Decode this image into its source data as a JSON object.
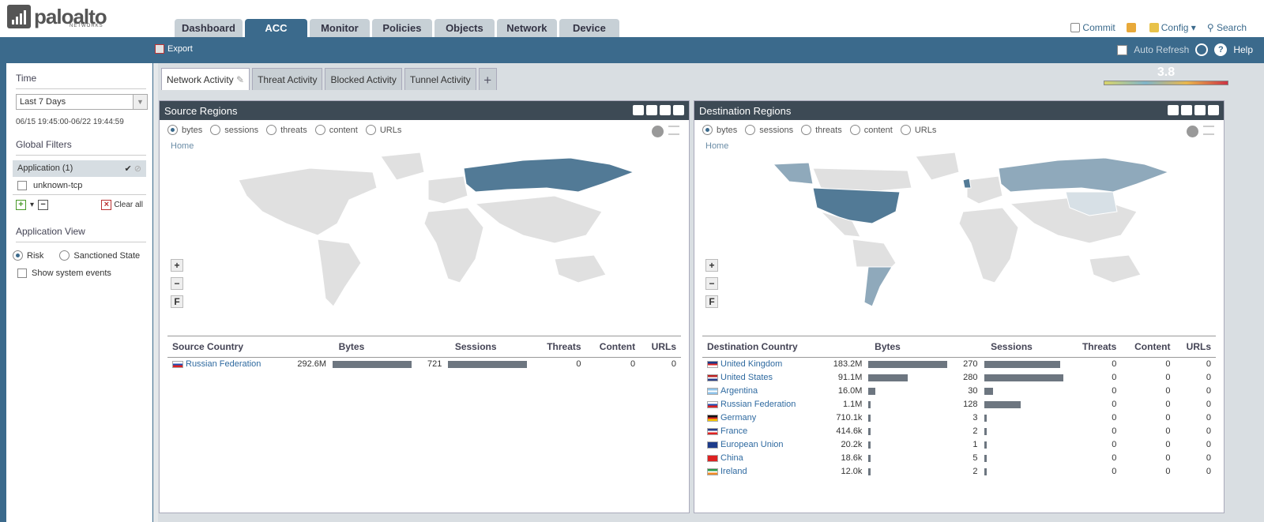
{
  "header": {
    "brand": "paloalto",
    "brand_sub": "NETWORKS",
    "tabs": [
      "Dashboard",
      "ACC",
      "Monitor",
      "Policies",
      "Objects",
      "Network",
      "Device"
    ],
    "active_tab": "ACC",
    "commit": "Commit",
    "config": "Config",
    "search": "Search"
  },
  "toolbar": {
    "export": "Export",
    "auto_refresh": "Auto Refresh",
    "help": "Help"
  },
  "sidebar": {
    "time_title": "Time",
    "time_value": "Last 7 Days",
    "date_range": "06/15 19:45:00-06/22 19:44:59",
    "global_filters_title": "Global Filters",
    "filter_group": "Application (1)",
    "filter_item": "unknown-tcp",
    "clear_all": "Clear all",
    "app_view_title": "Application View",
    "risk": "Risk",
    "sanctioned": "Sanctioned State",
    "show_system_events": "Show system events"
  },
  "widget_tabs": [
    "Network Activity",
    "Threat Activity",
    "Blocked Activity",
    "Tunnel Activity"
  ],
  "risk_level": "3.8",
  "radio_options": [
    "bytes",
    "sessions",
    "threats",
    "content",
    "URLs"
  ],
  "source_panel": {
    "title": "Source Regions",
    "home": "Home",
    "columns": [
      "Source Country",
      "Bytes",
      "Sessions",
      "Threats",
      "Content",
      "URLs"
    ],
    "rows": [
      {
        "country": "Russian Federation",
        "bytes": "292.6M",
        "bytes_frac": 1.0,
        "sessions": "721",
        "sessions_frac": 1.0,
        "threats": "0",
        "content": "0",
        "urls": "0",
        "flag": [
          "#ffffff",
          "#1f4fb5",
          "#d22"
        ]
      }
    ]
  },
  "dest_panel": {
    "title": "Destination Regions",
    "home": "Home",
    "columns": [
      "Destination Country",
      "Bytes",
      "Sessions",
      "Threats",
      "Content",
      "URLs"
    ],
    "rows": [
      {
        "country": "United Kingdom",
        "bytes": "183.2M",
        "bytes_frac": 1.0,
        "sessions": "270",
        "sessions_frac": 0.96,
        "threats": "0",
        "content": "0",
        "urls": "0",
        "flag": [
          "#1d3b8a",
          "#d22",
          "#ffffff"
        ]
      },
      {
        "country": "United States",
        "bytes": "91.1M",
        "bytes_frac": 0.5,
        "sessions": "280",
        "sessions_frac": 1.0,
        "threats": "0",
        "content": "0",
        "urls": "0",
        "flag": [
          "#b22",
          "#ffffff",
          "#2a3f88"
        ]
      },
      {
        "country": "Argentina",
        "bytes": "16.0M",
        "bytes_frac": 0.09,
        "sessions": "30",
        "sessions_frac": 0.11,
        "threats": "0",
        "content": "0",
        "urls": "0",
        "flag": [
          "#8fc3ea",
          "#ffffff",
          "#8fc3ea"
        ]
      },
      {
        "country": "Russian Federation",
        "bytes": "1.1M",
        "bytes_frac": 0.02,
        "sessions": "128",
        "sessions_frac": 0.46,
        "threats": "0",
        "content": "0",
        "urls": "0",
        "flag": [
          "#ffffff",
          "#1f4fb5",
          "#d22"
        ]
      },
      {
        "country": "Germany",
        "bytes": "710.1k",
        "bytes_frac": 0.02,
        "sessions": "3",
        "sessions_frac": 0.02,
        "threats": "0",
        "content": "0",
        "urls": "0",
        "flag": [
          "#111",
          "#d22",
          "#f5c400"
        ]
      },
      {
        "country": "France",
        "bytes": "414.6k",
        "bytes_frac": 0.02,
        "sessions": "2",
        "sessions_frac": 0.02,
        "threats": "0",
        "content": "0",
        "urls": "0",
        "flag": [
          "#2a3f88",
          "#ffffff",
          "#d22"
        ]
      },
      {
        "country": "European Union",
        "bytes": "20.2k",
        "bytes_frac": 0.02,
        "sessions": "1",
        "sessions_frac": 0.02,
        "threats": "0",
        "content": "0",
        "urls": "0",
        "flag": [
          "#1d3b8a",
          "#1d3b8a",
          "#1d3b8a"
        ]
      },
      {
        "country": "China",
        "bytes": "18.6k",
        "bytes_frac": 0.02,
        "sessions": "5",
        "sessions_frac": 0.02,
        "threats": "0",
        "content": "0",
        "urls": "0",
        "flag": [
          "#d22",
          "#d22",
          "#d22"
        ]
      },
      {
        "country": "Ireland",
        "bytes": "12.0k",
        "bytes_frac": 0.02,
        "sessions": "2",
        "sessions_frac": 0.02,
        "threats": "0",
        "content": "0",
        "urls": "0",
        "flag": [
          "#2a9a4a",
          "#ffffff",
          "#f08a24"
        ]
      }
    ]
  },
  "colors": {
    "accent": "#3b6a8c",
    "link": "#2f6aa0",
    "map_land": "#e0e0e0",
    "map_high": "#527a96",
    "map_mid": "#8fa9bb"
  }
}
